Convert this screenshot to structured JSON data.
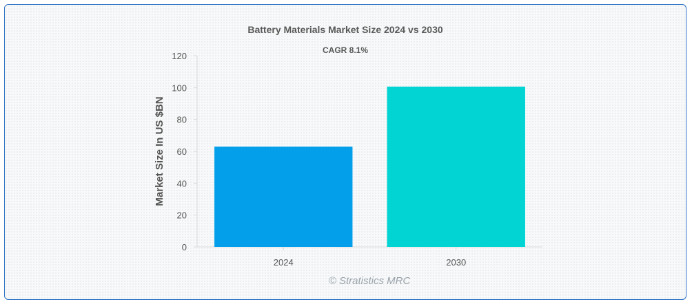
{
  "chart_data": {
    "type": "bar",
    "title": "Battery Materials Market Size 2024 vs 2030",
    "subtitle": "CAGR 8.1%",
    "xlabel": "",
    "ylabel": "Market Size In US $BN",
    "categories": [
      "2024",
      "2030"
    ],
    "values": [
      62.9,
      100.6
    ],
    "ylim": [
      0,
      120
    ],
    "yticks": [
      "0",
      "20",
      "40",
      "60",
      "80",
      "100",
      "120"
    ],
    "colors": [
      "#039fea",
      "#02d4d4"
    ],
    "grid": false,
    "legend": "none"
  },
  "watermark": "© Stratistics MRC"
}
